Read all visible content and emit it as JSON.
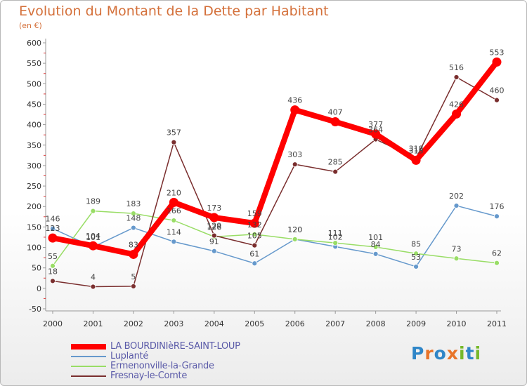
{
  "header": {
    "title": "Evolution du Montant de la Dette par Habitant",
    "subtitle": "(en €)"
  },
  "logo": {
    "letters": [
      {
        "char": "P",
        "color": "#2f86c8"
      },
      {
        "char": "r",
        "color": "#e8742a"
      },
      {
        "char": "o",
        "color": "#2f86c8"
      },
      {
        "char": "x",
        "color": "#e8742a"
      },
      {
        "char": "i",
        "color": "#76b82a"
      },
      {
        "char": "t",
        "color": "#2f86c8"
      },
      {
        "char": "i",
        "color": "#76b82a"
      }
    ]
  },
  "chart_data": {
    "type": "line",
    "x": [
      "2000",
      "2001",
      "2002",
      "2003",
      "2004",
      "2005",
      "2006",
      "2007",
      "2008",
      "2009",
      "2010",
      "2011"
    ],
    "ylim": [
      -50,
      600
    ],
    "yticks": [
      -50,
      0,
      50,
      100,
      150,
      200,
      250,
      300,
      350,
      400,
      450,
      500,
      550,
      600
    ],
    "grid": false,
    "legend_position": "bottom-left",
    "series": [
      {
        "name": "LA BOURDINIèRE-SAINT-LOUP",
        "color": "#ff0000",
        "style": "thick",
        "values": [
          123,
          104,
          83,
          210,
          173,
          159,
          436,
          407,
          377,
          313,
          426,
          553
        ]
      },
      {
        "name": "Luplanté",
        "color": "#6699cc",
        "style": "thin",
        "values": [
          146,
          101,
          148,
          114,
          91,
          61,
          120,
          102,
          84,
          53,
          202,
          176
        ]
      },
      {
        "name": "Ermenonville-la-Grande",
        "color": "#99dd66",
        "style": "thin",
        "values": [
          55,
          189,
          183,
          166,
          126,
          132,
          120,
          111,
          101,
          85,
          73,
          62
        ]
      },
      {
        "name": "Fresnay-le-Comte",
        "color": "#7a2e2e",
        "style": "thin",
        "values": [
          18,
          4,
          5,
          357,
          129,
          105,
          303,
          285,
          364,
          318,
          516,
          460
        ]
      }
    ]
  }
}
